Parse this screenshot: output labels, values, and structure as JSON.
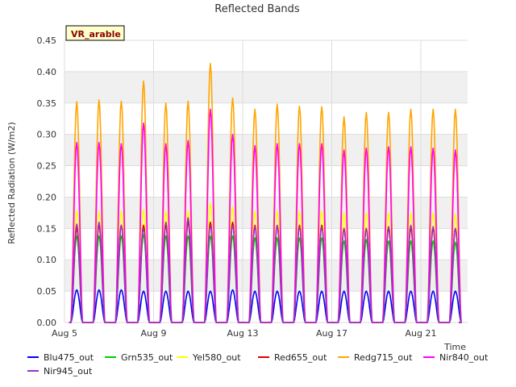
{
  "chart_data": {
    "type": "line",
    "title": "Reflected Bands",
    "xlabel": "Time",
    "ylabel": "Reflected Radiation (W/m2)",
    "badge": "VR_arable",
    "ylim": [
      0,
      0.45
    ],
    "y_ticks": [
      "0.00",
      "0.05",
      "0.10",
      "0.15",
      "0.20",
      "0.25",
      "0.30",
      "0.35",
      "0.40",
      "0.45"
    ],
    "x_ticks": [
      "Aug 5",
      "Aug 9",
      "Aug 13",
      "Aug 17",
      "Aug 21"
    ],
    "x_tick_days": [
      5,
      9,
      13,
      17,
      21
    ],
    "xlim_days": [
      5,
      23.1
    ],
    "days": [
      5.55,
      6.55,
      7.55,
      8.55,
      9.55,
      10.55,
      11.55,
      12.55,
      13.55,
      14.55,
      15.55,
      16.55,
      17.55,
      18.55,
      19.55,
      20.55,
      21.55,
      22.55
    ],
    "grid": true,
    "series": [
      {
        "name": "Blu475_out",
        "color": "#0000ff",
        "peaks": [
          0.052,
          0.052,
          0.052,
          0.05,
          0.05,
          0.05,
          0.05,
          0.052,
          0.05,
          0.05,
          0.05,
          0.05,
          0.05,
          0.05,
          0.05,
          0.05,
          0.05,
          0.05
        ]
      },
      {
        "name": "Grn535_out",
        "color": "#00cc00",
        "peaks": [
          0.138,
          0.138,
          0.138,
          0.14,
          0.138,
          0.138,
          0.138,
          0.138,
          0.135,
          0.135,
          0.135,
          0.135,
          0.13,
          0.132,
          0.13,
          0.13,
          0.13,
          0.128
        ]
      },
      {
        "name": "Yel580_out",
        "color": "#ffff00",
        "peaks": [
          0.178,
          0.178,
          0.178,
          0.18,
          0.178,
          0.178,
          0.19,
          0.185,
          0.178,
          0.178,
          0.178,
          0.178,
          0.175,
          0.175,
          0.175,
          0.175,
          0.175,
          0.173
        ]
      },
      {
        "name": "Red655_out",
        "color": "#dd0000",
        "peaks": [
          0.15,
          0.155,
          0.155,
          0.155,
          0.155,
          0.16,
          0.16,
          0.16,
          0.155,
          0.155,
          0.155,
          0.155,
          0.15,
          0.15,
          0.15,
          0.15,
          0.15,
          0.15
        ]
      },
      {
        "name": "Redg715_out",
        "color": "#ffa500",
        "peaks": [
          0.352,
          0.355,
          0.353,
          0.385,
          0.35,
          0.353,
          0.413,
          0.358,
          0.34,
          0.348,
          0.345,
          0.344,
          0.328,
          0.335,
          0.335,
          0.34,
          0.34,
          0.34
        ]
      },
      {
        "name": "Nir840_out",
        "color": "#ff00ff",
        "peaks": [
          0.287,
          0.287,
          0.285,
          0.318,
          0.285,
          0.29,
          0.34,
          0.3,
          0.282,
          0.285,
          0.285,
          0.285,
          0.275,
          0.278,
          0.28,
          0.28,
          0.278,
          0.275
        ]
      },
      {
        "name": "Nir945_out",
        "color": "#9933cc",
        "peaks": [
          0.157,
          0.16,
          0.155,
          0.15,
          0.16,
          0.167,
          0.155,
          0.155,
          0.153,
          0.155,
          0.153,
          0.153,
          0.15,
          0.15,
          0.153,
          0.155,
          0.153,
          0.15
        ]
      }
    ]
  }
}
